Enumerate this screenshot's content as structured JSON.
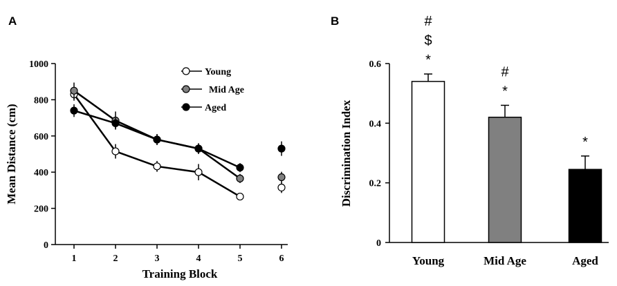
{
  "panels": {
    "a": "A",
    "b": "B"
  },
  "chart_data": [
    {
      "type": "line",
      "title": "",
      "xlabel": "Training Block",
      "ylabel": "Mean Distance (cm)",
      "x": [
        1,
        2,
        3,
        4,
        5,
        6
      ],
      "xlim": [
        0.55,
        6.15
      ],
      "ylim": [
        0,
        1000
      ],
      "yticks": [
        0,
        200,
        400,
        600,
        800,
        1000
      ],
      "grid": false,
      "legend_position": "top-right",
      "series": [
        {
          "name": "Young",
          "color": "#ffffff",
          "values": [
            830,
            515,
            432,
            400,
            265,
            315
          ],
          "errors": [
            35,
            40,
            30,
            45,
            15,
            30
          ],
          "connect_to": 5
        },
        {
          "name": "Mid Age",
          "color": "#808080",
          "values": [
            850,
            685,
            580,
            530,
            365,
            372
          ],
          "errors": [
            45,
            50,
            30,
            25,
            25,
            30
          ],
          "connect_to": 5
        },
        {
          "name": "Aged",
          "color": "#000000",
          "values": [
            740,
            670,
            580,
            530,
            425,
            530
          ],
          "errors": [
            35,
            30,
            30,
            30,
            25,
            40
          ],
          "connect_to": 5
        }
      ]
    },
    {
      "type": "bar",
      "title": "",
      "xlabel": "",
      "ylabel": "Discrimination Index",
      "categories": [
        "Young",
        "Mid Age",
        "Aged"
      ],
      "values": [
        0.54,
        0.42,
        0.245
      ],
      "errors": [
        0.025,
        0.04,
        0.045
      ],
      "colors": [
        "#ffffff",
        "#808080",
        "#000000"
      ],
      "ylim": [
        0,
        0.6
      ],
      "yticks": [
        "0",
        "0.2",
        "0.4",
        "0.6"
      ],
      "grid": false,
      "annotations": [
        [
          "#",
          "$",
          "*"
        ],
        [
          "#",
          "*"
        ],
        [
          "*"
        ]
      ]
    }
  ]
}
